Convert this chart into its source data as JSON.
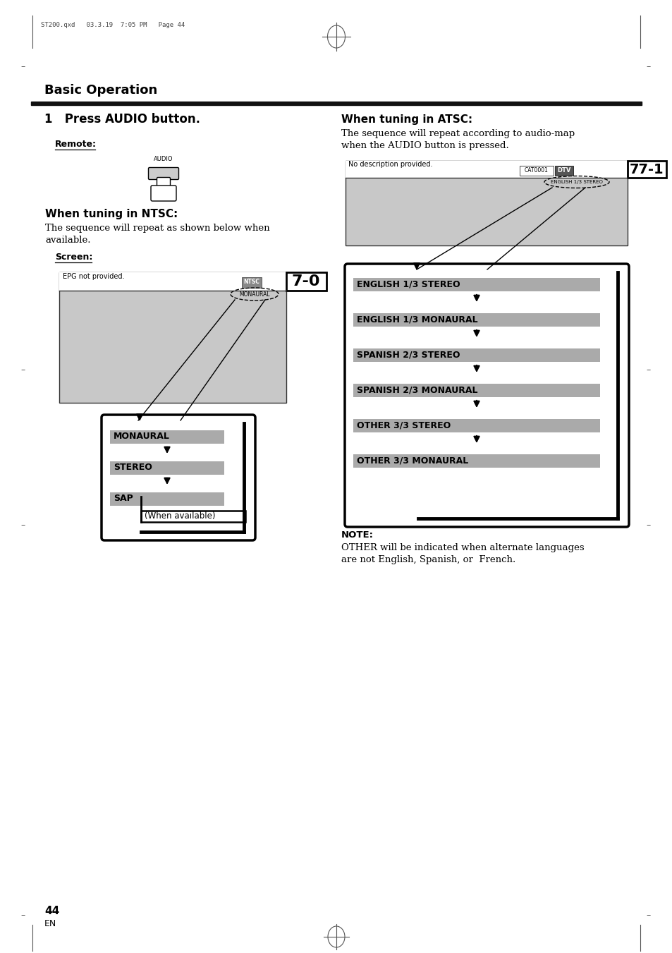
{
  "page_header": "ST200.qxd   03.3.19  7:05 PM   Page 44",
  "title": "Basic Operation",
  "section1_title": "1   Press AUDIO button.",
  "remote_label": "Remote:",
  "audio_label": "AUDIO",
  "ntsc_heading": "When tuning in NTSC:",
  "ntsc_body1": "The sequence will repeat as shown below when",
  "ntsc_body2": "available.",
  "screen_label": "Screen:",
  "ntsc_epg": "EPG not provided.",
  "ntsc_ntsc_tag": "NTSC",
  "ntsc_monaural_tag": "MONAURAL",
  "ntsc_channel": "7-0",
  "ntsc_items": [
    "MONAURAL",
    "STEREO",
    "SAP"
  ],
  "ntsc_note": "(When available)",
  "atsc_heading": "When tuning in ATSC:",
  "atsc_body1": "The sequence will repeat according to audio-map",
  "atsc_body2": "when the AUDIO button is pressed.",
  "atsc_epg": "No description provided.",
  "atsc_cat": "CAT0001",
  "atsc_dtv_tag": "DTV",
  "atsc_audio_tag": "ENGLISH 1/3 STEREO",
  "atsc_channel": "77-1",
  "atsc_items": [
    "ENGLISH 1/3 STEREO",
    "ENGLISH 1/3 MONAURAL",
    "SPANISH 2/3 STEREO",
    "SPANISH 2/3 MONAURAL",
    "OTHER 3/3 STEREO",
    "OTHER 3/3 MONAURAL"
  ],
  "note_heading": "NOTE:",
  "note_body1": "OTHER will be indicated when alternate languages",
  "note_body2": "are not English, Spanish, or  French.",
  "page_num": "44",
  "page_en": "EN",
  "bg_color": "#ffffff"
}
